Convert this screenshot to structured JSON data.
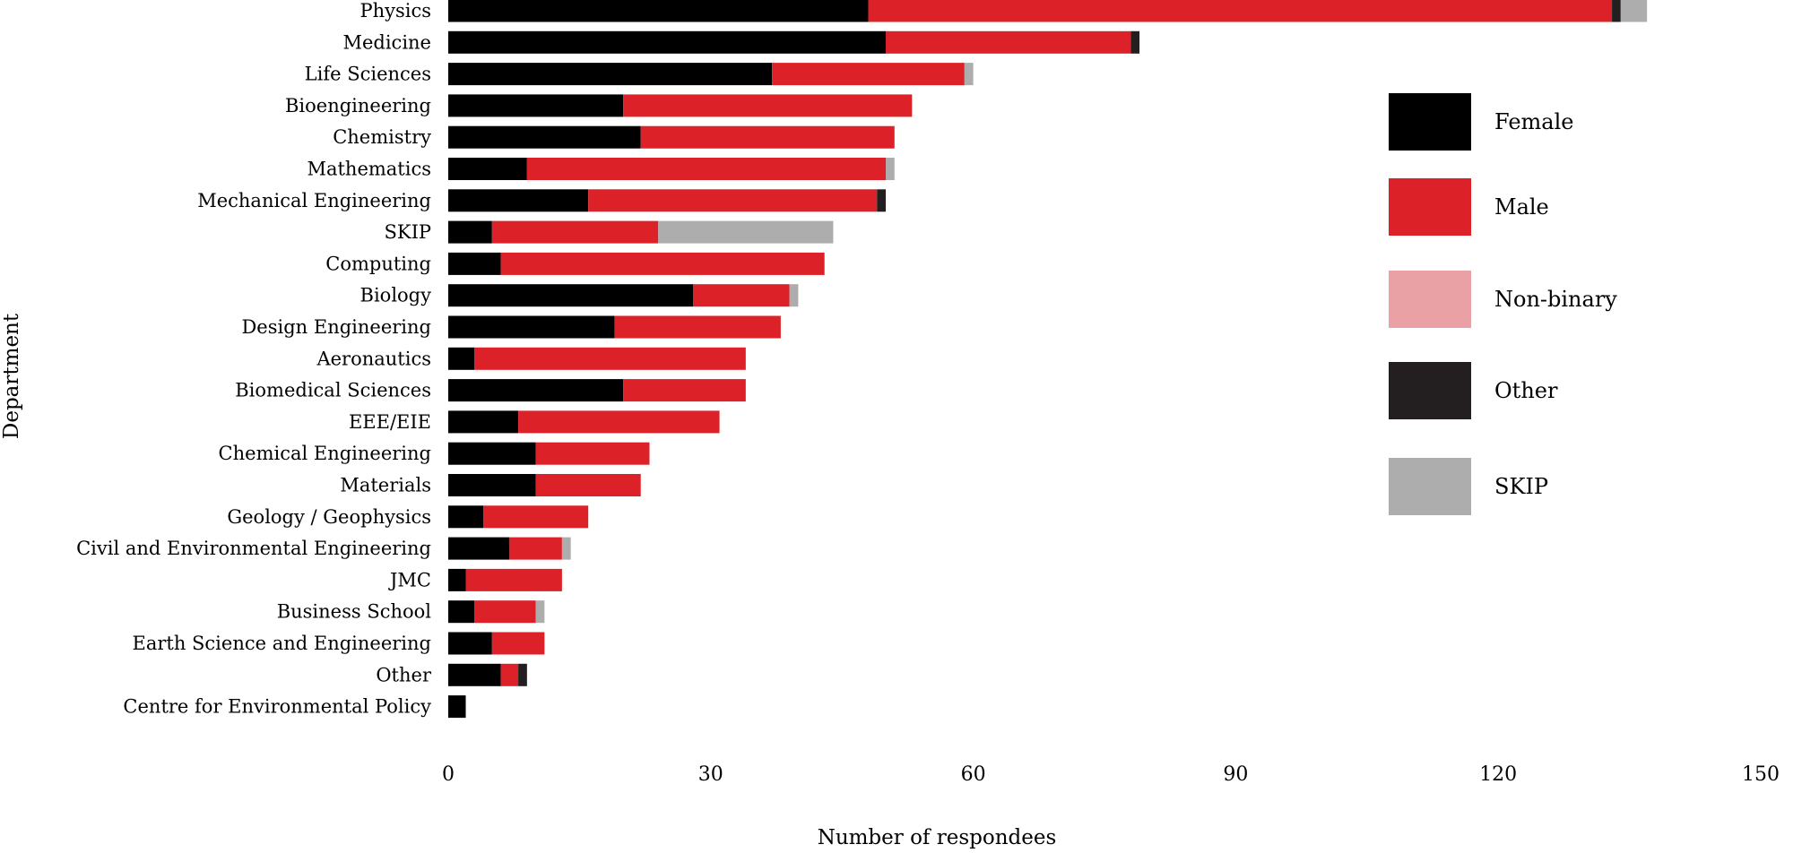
{
  "chart_data": {
    "type": "bar",
    "orientation": "horizontal",
    "stacked": true,
    "xlabel": "Number of respondees",
    "ylabel": "Department",
    "xlim": [
      0,
      150
    ],
    "xticks": [
      0,
      30,
      60,
      90,
      120,
      150
    ],
    "grid": false,
    "legend_position": "right",
    "categories": [
      "Physics",
      "Medicine",
      "Life Sciences",
      "Bioengineering",
      "Chemistry",
      "Mathematics",
      "Mechanical Engineering",
      "SKIP",
      "Computing",
      "Biology",
      "Design Engineering",
      "Aeronautics",
      "Biomedical Sciences",
      "EEE/EIE",
      "Chemical Engineering",
      "Materials",
      "Geology / Geophysics",
      "Civil and Environmental Engineering",
      "JMC",
      "Business School",
      "Earth Science and Engineering",
      "Other",
      "Centre for Environmental Policy"
    ],
    "series": [
      {
        "name": "Female",
        "color": "#000000",
        "values": [
          48,
          50,
          37,
          20,
          22,
          9,
          16,
          5,
          6,
          28,
          19,
          3,
          20,
          8,
          10,
          10,
          4,
          7,
          2,
          3,
          5,
          6,
          2
        ]
      },
      {
        "name": "Male",
        "color": "#dc2128",
        "values": [
          85,
          28,
          22,
          33,
          29,
          41,
          33,
          19,
          37,
          11,
          19,
          31,
          14,
          23,
          13,
          12,
          12,
          6,
          11,
          7,
          6,
          2,
          0
        ]
      },
      {
        "name": "Non-binary",
        "color": "#e9a1a5",
        "values": [
          0,
          0,
          0,
          0,
          0,
          0,
          0,
          0,
          0,
          0,
          0,
          0,
          0,
          0,
          0,
          0,
          0,
          0,
          0,
          0,
          0,
          0,
          0
        ]
      },
      {
        "name": "Other",
        "color": "#231f20",
        "values": [
          1,
          1,
          0,
          0,
          0,
          0,
          1,
          0,
          0,
          0,
          0,
          0,
          0,
          0,
          0,
          0,
          0,
          0,
          0,
          0,
          0,
          1,
          0
        ]
      },
      {
        "name": "SKIP",
        "color": "#adadae",
        "values": [
          3,
          0,
          1,
          0,
          0,
          1,
          0,
          20,
          0,
          1,
          0,
          0,
          0,
          0,
          0,
          0,
          0,
          1,
          0,
          1,
          0,
          0,
          0
        ]
      }
    ]
  }
}
